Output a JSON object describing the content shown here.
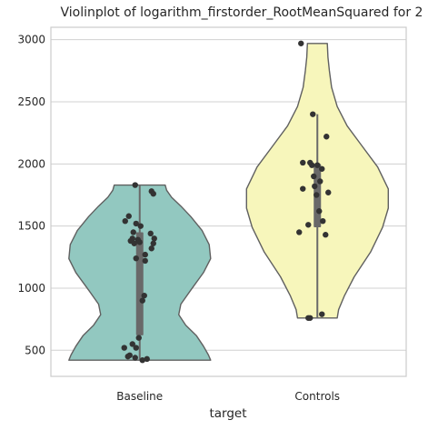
{
  "chart_data": {
    "type": "violin",
    "title": "Violinplot of logarithm_firstorder_RootMeanSquared for 2",
    "xlabel": "target",
    "ylabel": "",
    "categories": [
      "Baseline",
      "Controls"
    ],
    "ylim": [
      290,
      3100
    ],
    "yticks": [
      500,
      1000,
      1500,
      2000,
      2500,
      3000
    ],
    "grid": "horizontal",
    "colors": {
      "Baseline": "#92c8c0",
      "Controls": "#f7f6bb",
      "outline": "#606060",
      "points": "#333333",
      "grid": "#d0d0d0",
      "spine": "#cccccc",
      "box": "#696969"
    },
    "violins": [
      {
        "category": "Baseline",
        "range": [
          420,
          1830
        ],
        "quartiles": [
          620,
          1360,
          1450
        ],
        "whiskers": [
          420,
          1830
        ],
        "points": [
          [
            -0.05,
            1830
          ],
          [
            0.13,
            1780
          ],
          [
            0.15,
            1760
          ],
          [
            -0.12,
            1580
          ],
          [
            -0.16,
            1540
          ],
          [
            -0.04,
            1520
          ],
          [
            0.01,
            1500
          ],
          [
            -0.07,
            1450
          ],
          [
            0.12,
            1440
          ],
          [
            0.16,
            1400
          ],
          [
            -0.08,
            1400
          ],
          [
            -0.02,
            1390
          ],
          [
            -0.1,
            1380
          ],
          [
            0.0,
            1370
          ],
          [
            -0.06,
            1360
          ],
          [
            0.15,
            1360
          ],
          [
            0.13,
            1320
          ],
          [
            0.06,
            1270
          ],
          [
            -0.04,
            1240
          ],
          [
            0.06,
            1220
          ],
          [
            0.05,
            940
          ],
          [
            0.03,
            900
          ],
          [
            -0.01,
            600
          ],
          [
            -0.08,
            550
          ],
          [
            -0.17,
            520
          ],
          [
            -0.04,
            520
          ],
          [
            -0.11,
            460
          ],
          [
            -0.13,
            450
          ],
          [
            -0.05,
            440
          ],
          [
            0.03,
            420
          ],
          [
            0.08,
            430
          ]
        ]
      },
      {
        "category": "Controls",
        "range": [
          760,
          2970
        ],
        "quartiles": [
          1490,
          1850,
          2000
        ],
        "whiskers": [
          760,
          2400
        ],
        "points": [
          [
            -0.18,
            2970
          ],
          [
            -0.05,
            2400
          ],
          [
            0.1,
            2220
          ],
          [
            -0.16,
            2010
          ],
          [
            -0.08,
            2010
          ],
          [
            -0.06,
            1990
          ],
          [
            0.0,
            1990
          ],
          [
            0.05,
            1960
          ],
          [
            -0.04,
            1900
          ],
          [
            0.03,
            1860
          ],
          [
            -0.03,
            1820
          ],
          [
            -0.16,
            1800
          ],
          [
            0.12,
            1770
          ],
          [
            -0.01,
            1750
          ],
          [
            0.02,
            1620
          ],
          [
            0.06,
            1540
          ],
          [
            -0.1,
            1510
          ],
          [
            -0.2,
            1450
          ],
          [
            0.09,
            1430
          ],
          [
            0.05,
            790
          ],
          [
            -0.1,
            760
          ],
          [
            -0.08,
            760
          ]
        ]
      }
    ]
  }
}
